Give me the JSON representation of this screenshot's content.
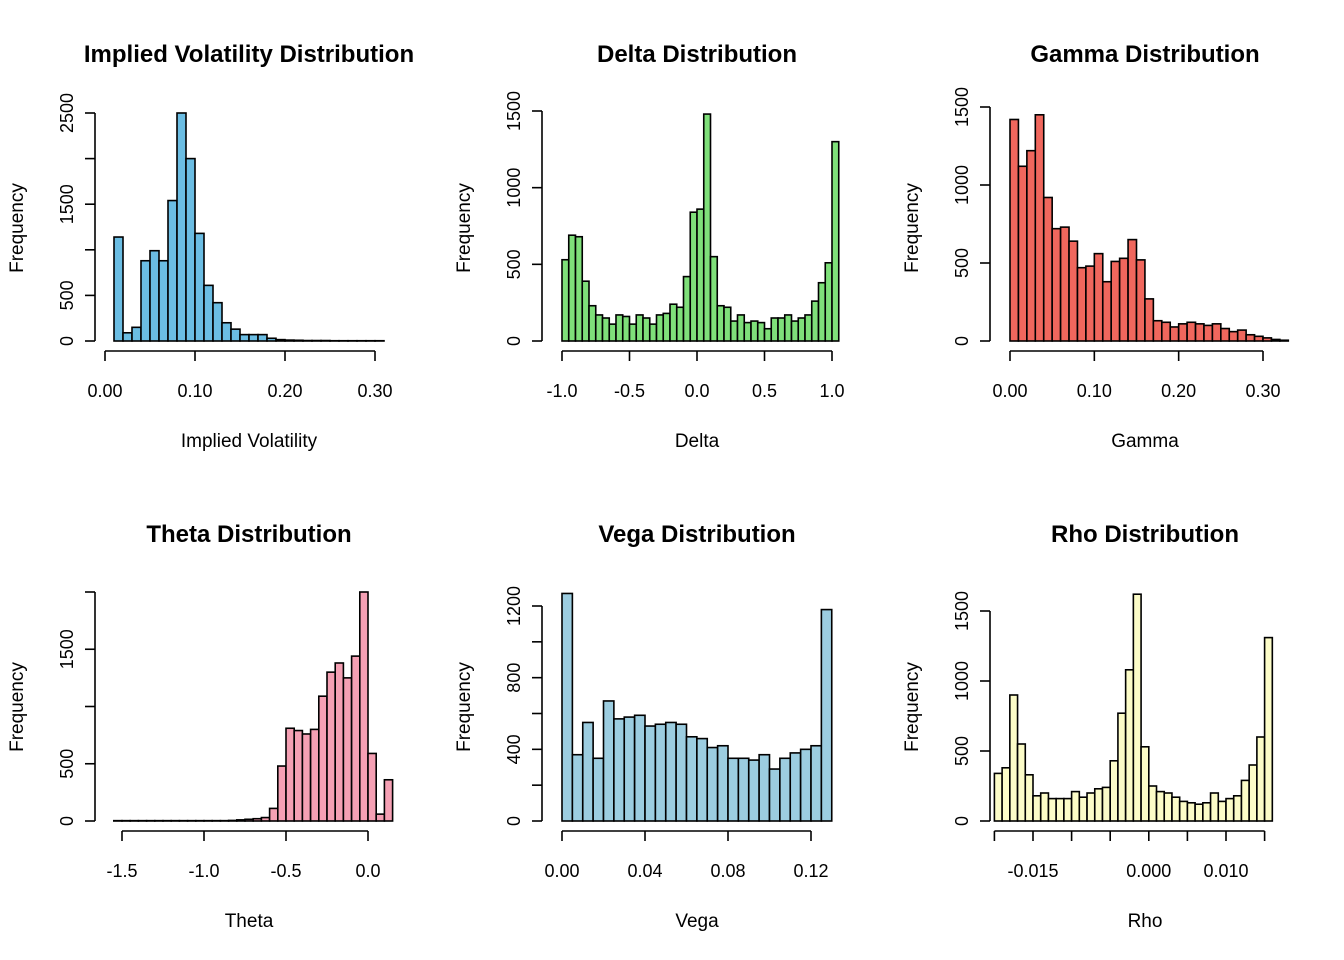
{
  "chart_data": [
    {
      "type": "bar",
      "title": "Implied Volatility Distribution",
      "xlabel": "Implied Volatility",
      "ylabel": "Frequency",
      "color": "#6bbde3",
      "bin_start": 0.01,
      "bin_width": 0.01,
      "counts": [
        1140,
        90,
        150,
        880,
        990,
        880,
        1540,
        2500,
        2000,
        1180,
        610,
        420,
        200,
        130,
        70,
        70,
        70,
        30,
        15,
        10,
        8,
        5,
        5,
        5,
        3,
        3,
        3,
        3,
        3,
        3
      ],
      "xlim": [
        0.0,
        0.31
      ],
      "ylim": [
        0,
        2500
      ],
      "xticks": [
        0.0,
        0.1,
        0.2,
        0.3
      ],
      "xtick_labels": [
        "0.00",
        "0.10",
        "0.20",
        "0.30"
      ],
      "yticks": [
        0,
        500,
        1500,
        2500
      ],
      "ytick_labels": [
        "0",
        "500",
        "1500",
        "2500"
      ],
      "yticks_minor": [
        1000,
        2000
      ]
    },
    {
      "type": "bar",
      "title": "Delta Distribution",
      "xlabel": "Delta",
      "ylabel": "Frequency",
      "color": "#7fe07a",
      "bin_start": -1.0,
      "bin_width": 0.05,
      "counts": [
        530,
        690,
        680,
        390,
        230,
        170,
        150,
        110,
        170,
        160,
        110,
        170,
        150,
        110,
        170,
        180,
        240,
        220,
        420,
        840,
        860,
        1480,
        550,
        230,
        220,
        130,
        170,
        120,
        130,
        120,
        80,
        150,
        150,
        170,
        130,
        150,
        170,
        260,
        380,
        510,
        1300
      ],
      "xlim": [
        -1.0,
        1.0
      ],
      "ylim": [
        0,
        1500
      ],
      "xticks": [
        -1.0,
        -0.5,
        0.0,
        0.5,
        1.0
      ],
      "xtick_labels": [
        "-1.0",
        "-0.5",
        "0.0",
        "0.5",
        "1.0"
      ],
      "yticks": [
        0,
        500,
        1000,
        1500
      ],
      "ytick_labels": [
        "0",
        "500",
        "1000",
        "1500"
      ],
      "yticks_minor": []
    },
    {
      "type": "bar",
      "title": "Gamma Distribution",
      "xlabel": "Gamma",
      "ylabel": "Frequency",
      "color": "#f0675d",
      "bin_start": 0.0,
      "bin_width": 0.01,
      "counts": [
        1420,
        1120,
        1220,
        1450,
        920,
        720,
        730,
        640,
        470,
        480,
        560,
        380,
        510,
        530,
        650,
        520,
        270,
        130,
        120,
        90,
        110,
        120,
        110,
        100,
        110,
        80,
        60,
        70,
        40,
        30,
        20,
        10,
        5
      ],
      "xlim": [
        0.0,
        0.32
      ],
      "ylim": [
        0,
        1500
      ],
      "xticks": [
        0.0,
        0.1,
        0.2,
        0.3
      ],
      "xtick_labels": [
        "0.00",
        "0.10",
        "0.20",
        "0.30"
      ],
      "yticks": [
        0,
        500,
        1000,
        1500
      ],
      "ytick_labels": [
        "0",
        "500",
        "1000",
        "1500"
      ],
      "yticks_minor": []
    },
    {
      "type": "bar",
      "title": "Theta Distribution",
      "xlabel": "Theta",
      "ylabel": "Frequency",
      "color": "#f5a0b4",
      "bin_start": -1.55,
      "bin_width": 0.05,
      "counts": [
        3,
        3,
        3,
        3,
        3,
        3,
        3,
        3,
        3,
        3,
        3,
        3,
        3,
        3,
        5,
        10,
        15,
        20,
        30,
        110,
        480,
        810,
        790,
        760,
        800,
        1090,
        1300,
        1380,
        1250,
        1440,
        2000,
        590,
        60,
        360
      ],
      "xlim": [
        -1.55,
        0.1
      ],
      "ylim": [
        0,
        2000
      ],
      "xticks": [
        -1.5,
        -1.0,
        -0.5,
        0.0
      ],
      "xtick_labels": [
        "-1.5",
        "-1.0",
        "-0.5",
        "0.0"
      ],
      "yticks": [
        0,
        500,
        1500
      ],
      "ytick_labels": [
        "0",
        "500",
        "1500"
      ],
      "yticks_minor": [
        1000,
        2000
      ]
    },
    {
      "type": "bar",
      "title": "Vega Distribution",
      "xlabel": "Vega",
      "ylabel": "Frequency",
      "color": "#9ccde0",
      "bin_start": 0.0,
      "bin_width": 0.005,
      "counts": [
        1270,
        370,
        550,
        350,
        670,
        570,
        580,
        590,
        530,
        540,
        550,
        540,
        470,
        460,
        410,
        420,
        350,
        350,
        340,
        370,
        290,
        350,
        380,
        400,
        420,
        1180
      ],
      "xlim": [
        0.0,
        0.13
      ],
      "ylim": [
        0,
        1200
      ],
      "xticks": [
        0.0,
        0.04,
        0.08,
        0.12
      ],
      "xtick_labels": [
        "0.00",
        "0.04",
        "0.08",
        "0.12"
      ],
      "yticks": [
        0,
        400,
        800,
        1200
      ],
      "ytick_labels": [
        "0",
        "400",
        "800",
        "1200"
      ],
      "yticks_minor": [
        200,
        600,
        1000
      ]
    },
    {
      "type": "bar",
      "title": "Rho Distribution",
      "xlabel": "Rho",
      "ylabel": "Frequency",
      "color": "#fcfcc8",
      "bin_start": -0.02,
      "bin_width": 0.001,
      "counts": [
        340,
        380,
        900,
        550,
        330,
        180,
        200,
        160,
        160,
        160,
        210,
        170,
        200,
        230,
        240,
        430,
        770,
        1080,
        1620,
        530,
        250,
        210,
        200,
        170,
        140,
        130,
        120,
        130,
        200,
        140,
        160,
        180,
        290,
        400,
        600,
        1310
      ],
      "xlim": [
        -0.02,
        0.016
      ],
      "ylim": [
        0,
        1500
      ],
      "xticks": [
        -0.015,
        0.0,
        0.01
      ],
      "xtick_labels": [
        "-0.015",
        "0.000",
        "0.010"
      ],
      "xticks_minor": [
        -0.02,
        -0.01,
        -0.005,
        0.005,
        0.015
      ],
      "yticks": [
        0,
        500,
        1000,
        1500
      ],
      "ytick_labels": [
        "0",
        "500",
        "1000",
        "1500"
      ],
      "yticks_minor": []
    }
  ]
}
